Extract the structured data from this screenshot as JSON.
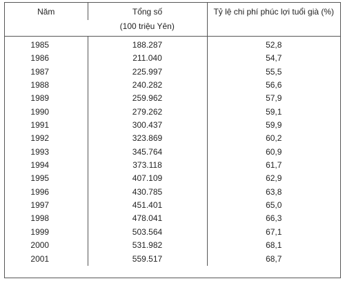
{
  "headers": {
    "year": "Năm",
    "total_line1": "Tổng số",
    "total_line2": "(100 triệu Yên)",
    "ratio": "Tỷ lệ chi phí phúc lợi tuổi già (%)"
  },
  "rows": [
    {
      "year": "1985",
      "total": "188.287",
      "ratio": "52,8"
    },
    {
      "year": "1986",
      "total": "211.040",
      "ratio": "54,7"
    },
    {
      "year": "1987",
      "total": "225.997",
      "ratio": "55,5"
    },
    {
      "year": "1988",
      "total": "240.282",
      "ratio": "56,6"
    },
    {
      "year": "1989",
      "total": "259.962",
      "ratio": "57,9"
    },
    {
      "year": "1990",
      "total": "279.262",
      "ratio": "59,1"
    },
    {
      "year": "1991",
      "total": "300.437",
      "ratio": "59,9"
    },
    {
      "year": "1992",
      "total": "323.869",
      "ratio": "60,2"
    },
    {
      "year": "1993",
      "total": "345.764",
      "ratio": "60,9"
    },
    {
      "year": "1994",
      "total": "373.118",
      "ratio": "61,7"
    },
    {
      "year": "1995",
      "total": "407.109",
      "ratio": "62,9"
    },
    {
      "year": "1996",
      "total": "430.785",
      "ratio": "63,8"
    },
    {
      "year": "1997",
      "total": "451.401",
      "ratio": "65,0"
    },
    {
      "year": "1998",
      "total": "478.041",
      "ratio": "66,3"
    },
    {
      "year": "1999",
      "total": "503.564",
      "ratio": "67,1"
    },
    {
      "year": "2000",
      "total": "531.982",
      "ratio": "68,1"
    },
    {
      "year": "2001",
      "total": "559.517",
      "ratio": "68,7"
    }
  ]
}
